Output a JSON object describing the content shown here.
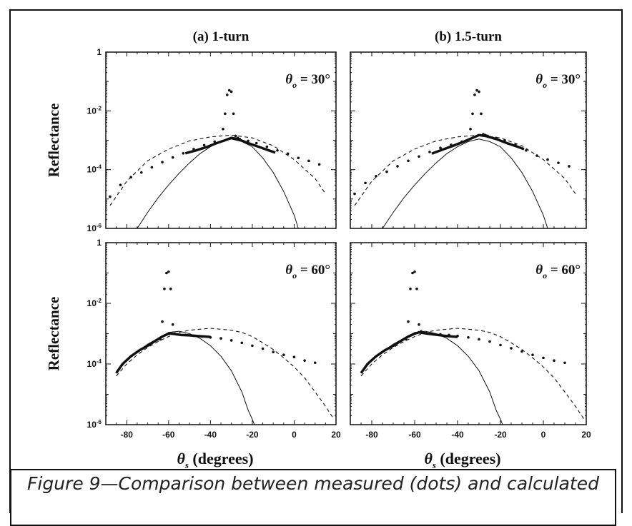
{
  "caption": "Figure 9—Comparison between measured (dots) and calculated",
  "chart_data": [
    {
      "type": "line",
      "title": "(a) 1-turn",
      "annotation": "θo = 30°",
      "ylabel": "Reflectance",
      "xlabel": "",
      "yscale": "log",
      "ylim_log10": [
        -6,
        0
      ],
      "xlim": [
        -90,
        20
      ],
      "y_tick_labels": [
        "1",
        "10-2",
        "10-4",
        "10-6"
      ],
      "x_tick_labels": [],
      "series": [
        {
          "style": "dots",
          "x": [
            -88,
            -83,
            -78,
            -73,
            -68,
            -63,
            -58,
            -53,
            -48,
            -43,
            -38,
            -34,
            -33,
            -32,
            -31,
            -30,
            -29,
            -28,
            -27,
            -26,
            -22,
            -18,
            -13,
            -8,
            -3,
            2,
            7,
            12
          ],
          "y": [
            1.2e-05,
            3e-05,
            5.5e-05,
            8e-05,
            0.00012,
            0.00018,
            0.00026,
            0.00036,
            0.0005,
            0.00068,
            0.0009,
            0.0024,
            0.008,
            0.035,
            0.05,
            0.045,
            0.008,
            0.0014,
            0.0012,
            0.0011,
            0.00095,
            0.0008,
            0.0006,
            0.00045,
            0.00035,
            0.00025,
            0.0002,
            0.00015
          ]
        },
        {
          "style": "thick",
          "x": [
            -52,
            -47,
            -42,
            -37,
            -33,
            -30,
            -27,
            -22,
            -17,
            -12,
            -9
          ],
          "y": [
            0.00036,
            0.00045,
            0.00058,
            0.0008,
            0.001,
            0.0012,
            0.0011,
            0.0008,
            0.0006,
            0.00045,
            0.00038
          ]
        },
        {
          "style": "solid",
          "x": [
            -75,
            -70,
            -65,
            -60,
            -55,
            -50,
            -45,
            -40,
            -35,
            -30,
            -25,
            -20,
            -15,
            -10,
            -5,
            0,
            2
          ],
          "y": [
            1e-06,
            3.5e-06,
            1.1e-05,
            3e-05,
            7.5e-05,
            0.00017,
            0.00035,
            0.0006,
            0.0009,
            0.0011,
            0.0009,
            0.0006,
            0.00025,
            8e-05,
            1.8e-05,
            2.8e-06,
            1e-06
          ]
        },
        {
          "style": "dashed",
          "x": [
            -88,
            -80,
            -70,
            -60,
            -50,
            -40,
            -30,
            -20,
            -10,
            0,
            10,
            15
          ],
          "y": [
            6e-06,
            4e-05,
            0.0002,
            0.0005,
            0.00095,
            0.0013,
            0.0015,
            0.0012,
            0.00065,
            0.00022,
            5e-05,
            1.5e-05
          ]
        }
      ]
    },
    {
      "type": "line",
      "title": "(b) 1.5-turn",
      "annotation": "θo = 30°",
      "ylabel": "",
      "xlabel": "",
      "yscale": "log",
      "ylim_log10": [
        -6,
        0
      ],
      "xlim": [
        -90,
        20
      ],
      "y_tick_labels": [],
      "x_tick_labels": [],
      "series": [
        {
          "style": "dots",
          "x": [
            -88,
            -83,
            -78,
            -73,
            -68,
            -63,
            -58,
            -53,
            -48,
            -43,
            -38,
            -34,
            -33,
            -32,
            -31,
            -30,
            -29,
            -28,
            -27,
            -26,
            -22,
            -18,
            -13,
            -8,
            -3,
            2,
            7,
            12
          ],
          "y": [
            1.5e-05,
            3.5e-05,
            6e-05,
            8.5e-05,
            0.00013,
            0.0002,
            0.00028,
            0.0004,
            0.00055,
            0.0007,
            0.0009,
            0.0024,
            0.008,
            0.035,
            0.05,
            0.045,
            0.008,
            0.0016,
            0.0015,
            0.0014,
            0.0012,
            0.001,
            0.0007,
            0.00045,
            0.0003,
            0.00022,
            0.00017,
            0.00013
          ]
        },
        {
          "style": "thick",
          "x": [
            -52,
            -47,
            -42,
            -37,
            -33,
            -30,
            -27,
            -22,
            -17,
            -12,
            -9
          ],
          "y": [
            0.00035,
            0.00048,
            0.00065,
            0.0009,
            0.0012,
            0.0015,
            0.0014,
            0.0011,
            0.0008,
            0.0006,
            0.0005
          ]
        },
        {
          "style": "solid",
          "x": [
            -75,
            -70,
            -65,
            -60,
            -55,
            -50,
            -45,
            -40,
            -35,
            -30,
            -25,
            -20,
            -15,
            -10,
            -5,
            0,
            2
          ],
          "y": [
            1e-06,
            3.5e-06,
            1.1e-05,
            3e-05,
            7.5e-05,
            0.00017,
            0.00035,
            0.0006,
            0.0009,
            0.0011,
            0.0009,
            0.0006,
            0.00025,
            8e-05,
            1.8e-05,
            2.8e-06,
            1e-06
          ]
        },
        {
          "style": "dashed",
          "x": [
            -88,
            -80,
            -70,
            -60,
            -50,
            -40,
            -30,
            -20,
            -10,
            0,
            10,
            15
          ],
          "y": [
            6e-06,
            4e-05,
            0.0002,
            0.0005,
            0.00095,
            0.0013,
            0.0015,
            0.0012,
            0.00065,
            0.00022,
            5e-05,
            1.5e-05
          ]
        }
      ]
    },
    {
      "type": "line",
      "title": "",
      "annotation": "θo = 60°",
      "ylabel": "Reflectance",
      "xlabel": "θs (degrees)",
      "yscale": "log",
      "ylim_log10": [
        -6,
        0
      ],
      "xlim": [
        -90,
        20
      ],
      "y_tick_labels": [
        "1",
        "10-2",
        "10-4",
        "10-6"
      ],
      "x_tick_labels": [
        "-80",
        "-60",
        "-40",
        "-20",
        "0",
        "20"
      ],
      "series": [
        {
          "style": "dots",
          "x": [
            -64,
            -63,
            -62,
            -61,
            -60,
            -59,
            -58,
            -57,
            -56,
            -52,
            -48,
            -44,
            -40,
            -35,
            -30,
            -25,
            -20,
            -15,
            -10,
            -5,
            0,
            5,
            10
          ],
          "y": [
            0.00065,
            0.0025,
            0.03,
            0.1,
            0.11,
            0.03,
            0.002,
            0.001,
            0.00095,
            0.0009,
            0.00085,
            0.0008,
            0.00075,
            0.0007,
            0.0006,
            0.0005,
            0.0004,
            0.00032,
            0.00025,
            0.0002,
            0.00017,
            0.00013,
            0.00011
          ]
        },
        {
          "style": "thick",
          "x": [
            -85,
            -82,
            -78,
            -74,
            -70,
            -66,
            -63,
            -60,
            -58,
            -54,
            -50,
            -46,
            -42,
            -40
          ],
          "y": [
            5e-05,
            0.0001,
            0.00018,
            0.00028,
            0.0004,
            0.0006,
            0.0008,
            0.001,
            0.001,
            0.0009,
            0.00088,
            0.00083,
            0.0008,
            0.00078
          ]
        },
        {
          "style": "solid",
          "x": [
            -85,
            -80,
            -75,
            -70,
            -65,
            -60,
            -55,
            -50,
            -45,
            -40,
            -35,
            -30,
            -25,
            -22,
            -20,
            -19
          ],
          "y": [
            5e-05,
            0.00013,
            0.00025,
            0.00045,
            0.0007,
            0.0011,
            0.0012,
            0.001,
            0.0007,
            0.0004,
            0.00018,
            6e-05,
            1.2e-05,
            3e-06,
            1.5e-06,
            1e-06
          ]
        },
        {
          "style": "dashed",
          "x": [
            -85,
            -80,
            -75,
            -70,
            -65,
            -60,
            -55,
            -50,
            -45,
            -40,
            -35,
            -30,
            -25,
            -20,
            -15,
            -10,
            -5,
            0,
            5,
            10,
            15,
            19
          ],
          "y": [
            4e-05,
            0.0001,
            0.0002,
            0.00035,
            0.00055,
            0.0008,
            0.0011,
            0.0013,
            0.0014,
            0.0015,
            0.0014,
            0.0013,
            0.0011,
            0.0008,
            0.0005,
            0.0003,
            0.00016,
            8e-05,
            3.5e-05,
            1.2e-05,
            4e-06,
            1.5e-06
          ]
        }
      ]
    },
    {
      "type": "line",
      "title": "",
      "annotation": "θo = 60°",
      "ylabel": "",
      "xlabel": "θs (degrees)",
      "yscale": "log",
      "ylim_log10": [
        -6,
        0
      ],
      "xlim": [
        -90,
        20
      ],
      "y_tick_labels": [],
      "x_tick_labels": [
        "-80",
        "-60",
        "-40",
        "-20",
        "0",
        "20"
      ],
      "series": [
        {
          "style": "dots",
          "x": [
            -64,
            -63,
            -62,
            -61,
            -60,
            -59,
            -58,
            -57,
            -56,
            -52,
            -48,
            -44,
            -40,
            -35,
            -30,
            -25,
            -20,
            -15,
            -10,
            -5,
            0,
            5,
            10
          ],
          "y": [
            0.00065,
            0.0025,
            0.03,
            0.1,
            0.11,
            0.03,
            0.002,
            0.0012,
            0.0011,
            0.001,
            0.00095,
            0.0009,
            0.00085,
            0.00075,
            0.00065,
            0.00055,
            0.00042,
            0.00033,
            0.00026,
            0.0002,
            0.00016,
            0.00013,
            0.00011
          ]
        },
        {
          "style": "thick",
          "x": [
            -85,
            -82,
            -78,
            -74,
            -70,
            -66,
            -63,
            -60,
            -58,
            -54,
            -50,
            -46,
            -42,
            -40
          ],
          "y": [
            5e-05,
            0.0001,
            0.00018,
            0.00028,
            0.0004,
            0.0006,
            0.0008,
            0.001,
            0.0011,
            0.001,
            0.00092,
            0.00085,
            0.0008,
            0.00078
          ]
        },
        {
          "style": "solid",
          "x": [
            -85,
            -80,
            -75,
            -70,
            -65,
            -60,
            -55,
            -50,
            -45,
            -40,
            -35,
            -30,
            -25,
            -22,
            -20,
            -19
          ],
          "y": [
            5e-05,
            0.00013,
            0.00025,
            0.00045,
            0.0007,
            0.0011,
            0.0012,
            0.001,
            0.0007,
            0.0004,
            0.00018,
            6e-05,
            1.2e-05,
            3e-06,
            1.5e-06,
            1e-06
          ]
        },
        {
          "style": "dashed",
          "x": [
            -85,
            -80,
            -75,
            -70,
            -65,
            -60,
            -55,
            -50,
            -45,
            -40,
            -35,
            -30,
            -25,
            -20,
            -15,
            -10,
            -5,
            0,
            5,
            10,
            15,
            19
          ],
          "y": [
            4e-05,
            0.0001,
            0.0002,
            0.00035,
            0.00055,
            0.0008,
            0.0011,
            0.0013,
            0.0014,
            0.0015,
            0.0014,
            0.0013,
            0.0011,
            0.0008,
            0.0005,
            0.0003,
            0.00016,
            8e-05,
            3.5e-05,
            1.2e-05,
            4e-06,
            1.5e-06
          ]
        }
      ]
    }
  ],
  "colors": {
    "ink": "#111111",
    "background": "#ffffff"
  }
}
